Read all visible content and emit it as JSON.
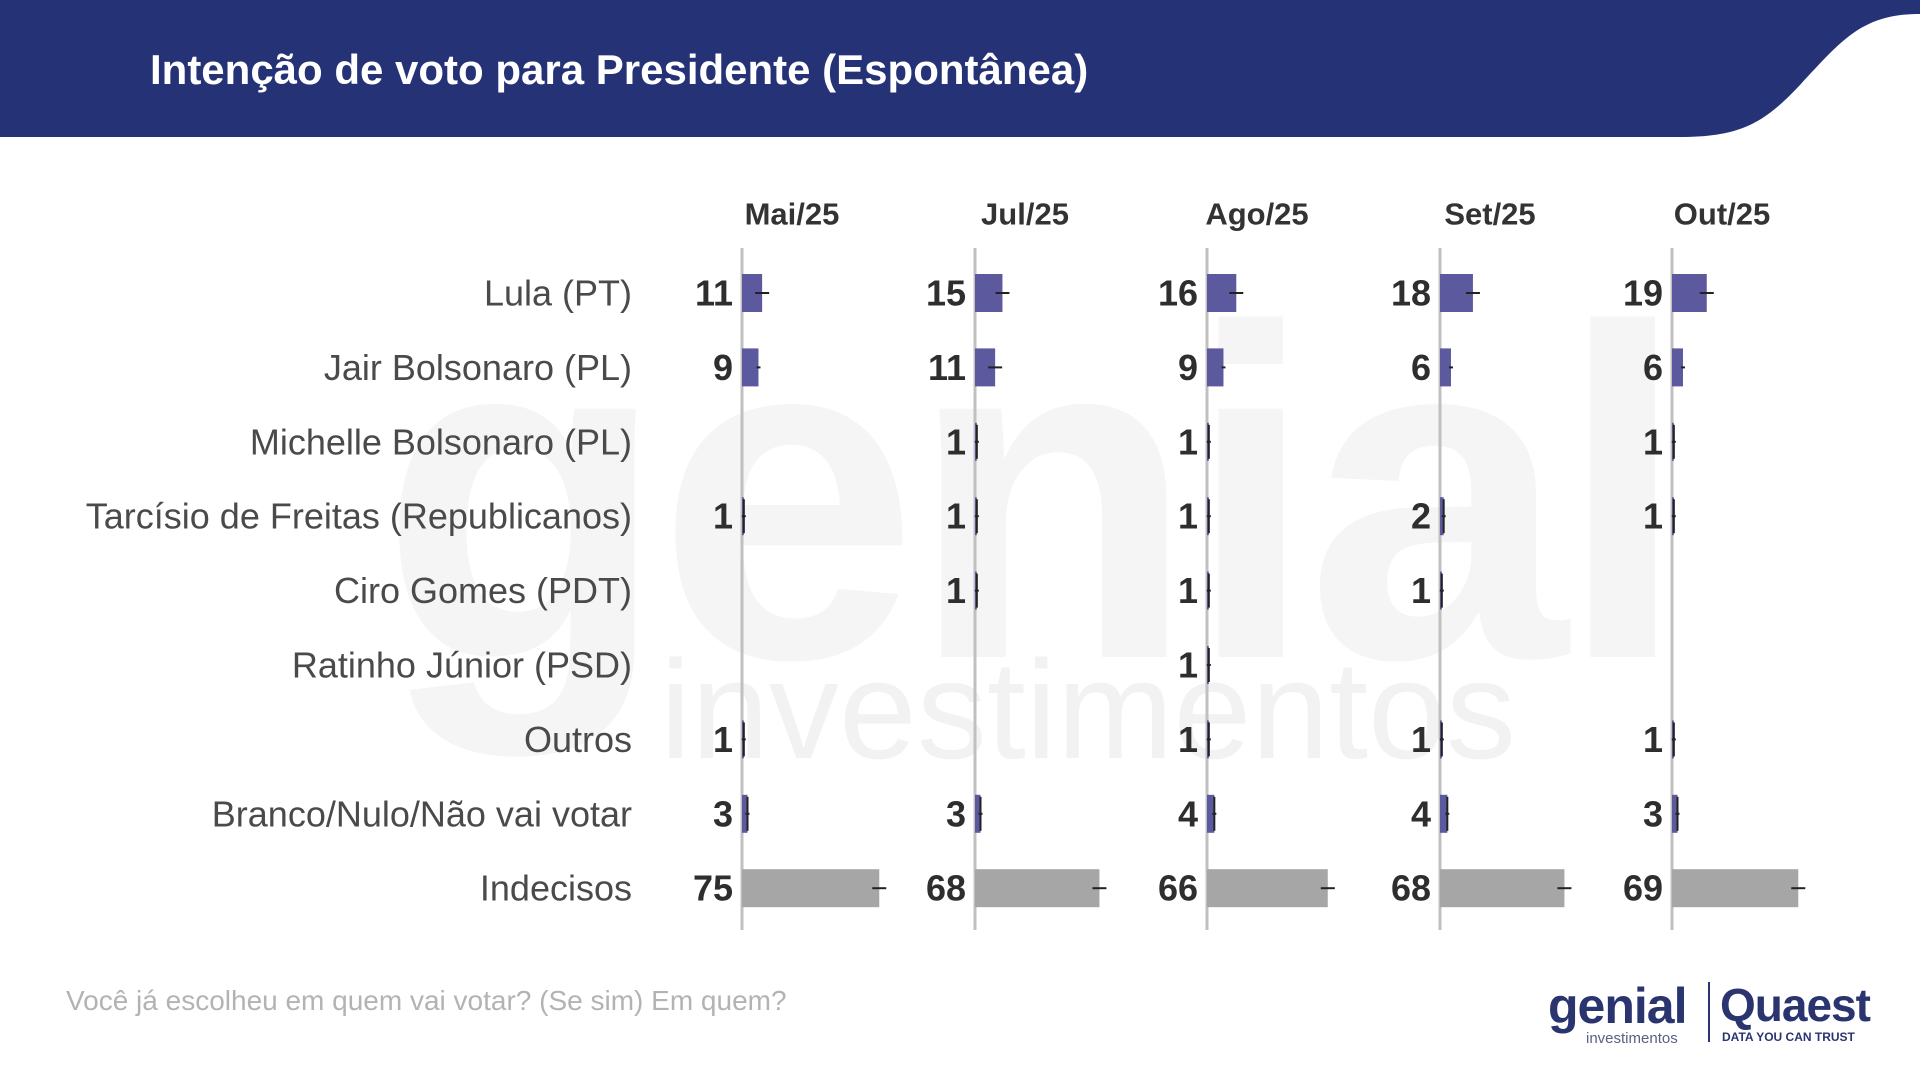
{
  "title": "Intenção de voto para Presidente (Espontânea)",
  "question": "Você já escolheu em quem vai votar? (Se sim) Em quem?",
  "logos": {
    "genial": "genial",
    "genial_sub": "investimentos",
    "quaest": "Quaest",
    "quaest_tagline": "DATA YOU CAN TRUST"
  },
  "watermark": {
    "main": "genial",
    "sub": "investimentos"
  },
  "colors": {
    "header": "#253376",
    "bar_candidate": "#5d599f",
    "bar_undecided": "#a6a6a6",
    "axis_line": "#c0c0c0"
  },
  "chart_data": {
    "type": "bar",
    "orientation": "horizontal",
    "layout": "small-multiples",
    "title": "Intenção de voto para Presidente (Espontânea)",
    "categories": [
      "Lula (PT)",
      "Jair Bolsonaro (PL)",
      "Michelle Bolsonaro (PL)",
      "Tarcísio de Freitas (Republicanos)",
      "Ciro Gomes (PDT)",
      "Ratinho Júnior (PSD)",
      "Outros",
      "Branco/Nulo/Não vai votar",
      "Indecisos"
    ],
    "series": [
      {
        "name": "Mai/25",
        "values": [
          11,
          9,
          null,
          1,
          null,
          null,
          1,
          3,
          75
        ]
      },
      {
        "name": "Jul/25",
        "values": [
          15,
          11,
          1,
          1,
          1,
          null,
          null,
          3,
          68
        ]
      },
      {
        "name": "Ago/25",
        "values": [
          16,
          9,
          1,
          1,
          1,
          1,
          1,
          4,
          66
        ]
      },
      {
        "name": "Set/25",
        "values": [
          18,
          6,
          null,
          2,
          1,
          null,
          1,
          4,
          68
        ]
      },
      {
        "name": "Out/25",
        "values": [
          19,
          6,
          1,
          1,
          null,
          null,
          1,
          3,
          69
        ]
      }
    ],
    "xlim": [
      0,
      100
    ],
    "grid": false,
    "legend": "none",
    "error_bars": true
  }
}
